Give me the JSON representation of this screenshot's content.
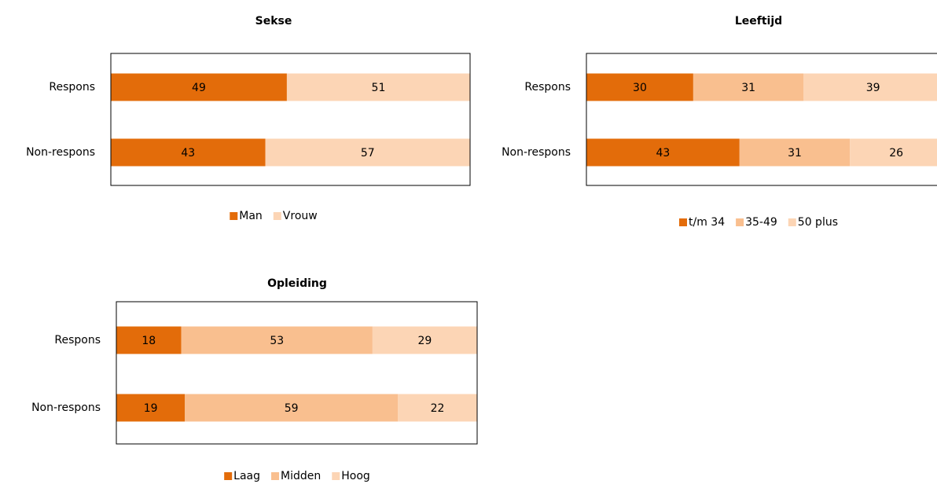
{
  "chart_data": [
    {
      "type": "stacked-bar-horizontal",
      "title": "Sekse",
      "categories": [
        "Respons",
        "Non-respons"
      ],
      "series": [
        {
          "name": "Man",
          "color": "#e36c0a",
          "values": [
            49,
            43
          ]
        },
        {
          "name": "Vrouw",
          "color": "#fcd5b5",
          "values": [
            51,
            57
          ]
        }
      ],
      "xlim": [
        0,
        100
      ],
      "legend": "bottom"
    },
    {
      "type": "stacked-bar-horizontal",
      "title": "Leeftijd",
      "categories": [
        "Respons",
        "Non-respons"
      ],
      "series": [
        {
          "name": "t/m 34",
          "color": "#e36c0a",
          "values": [
            30,
            43
          ]
        },
        {
          "name": "35-49",
          "color": "#f9bf8f",
          "values": [
            31,
            31
          ]
        },
        {
          "name": "50 plus",
          "color": "#fcd5b5",
          "values": [
            39,
            26
          ]
        }
      ],
      "xlim": [
        0,
        100
      ],
      "legend": "bottom"
    },
    {
      "type": "stacked-bar-horizontal",
      "title": "Opleiding",
      "categories": [
        "Respons",
        "Non-respons"
      ],
      "series": [
        {
          "name": "Laag",
          "color": "#e36c0a",
          "values": [
            18,
            19
          ]
        },
        {
          "name": "Midden",
          "color": "#f9bf8f",
          "values": [
            53,
            59
          ]
        },
        {
          "name": "Hoog",
          "color": "#fcd5b5",
          "values": [
            29,
            22
          ]
        }
      ],
      "xlim": [
        0,
        100
      ],
      "legend": "bottom"
    }
  ]
}
